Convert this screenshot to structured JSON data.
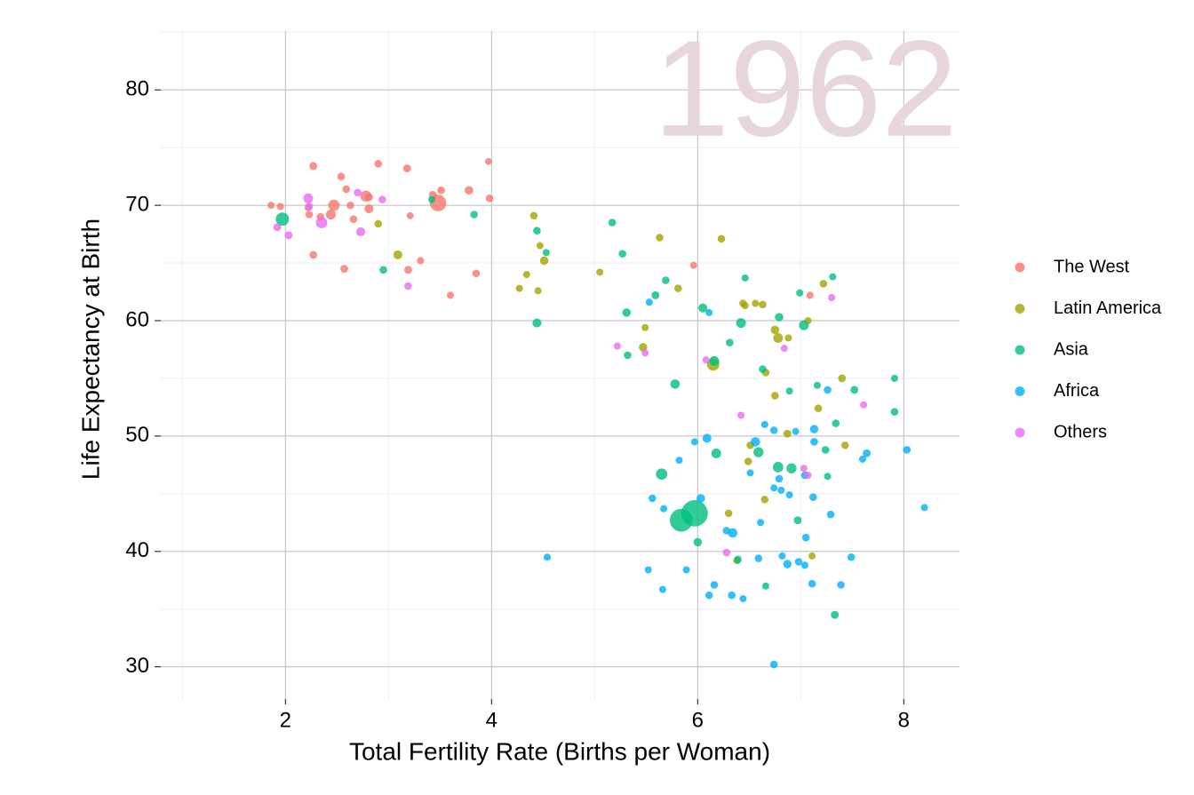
{
  "chart_data": {
    "type": "scatter",
    "annotation": "1962",
    "x_label": "Total Fertility Rate (Births per Woman)",
    "y_label": "Life Expectancy at Birth",
    "xlim": [
      0.79,
      8.54
    ],
    "xticks": [
      2,
      4,
      6,
      8
    ],
    "xminor": [
      1,
      3,
      5,
      7
    ],
    "ylim": [
      27.2,
      85.1
    ],
    "yticks": [
      30,
      40,
      50,
      60,
      70,
      80
    ],
    "yminor": [
      35,
      45,
      55,
      65,
      75,
      85
    ],
    "grid": true,
    "legend": "right",
    "series": [
      {
        "name": "The West",
        "color": "#F8766D",
        "x": [
          1.86,
          1.95,
          2.27,
          2.54,
          2.59,
          2.9,
          3.18,
          3.97,
          2.22,
          2.23,
          2.34,
          2.47,
          2.44,
          2.63,
          2.66,
          2.78,
          2.81,
          2.81,
          3.21,
          3.43,
          3.48,
          3.51,
          3.78,
          3.98,
          2.27,
          2.57,
          3.19,
          3.31,
          3.6,
          3.85,
          5.96,
          7.09
        ],
        "y": [
          70.0,
          69.9,
          73.4,
          72.5,
          71.4,
          73.6,
          73.2,
          73.8,
          69.8,
          69.2,
          69.0,
          70.0,
          69.2,
          70.0,
          68.8,
          70.8,
          69.7,
          70.7,
          69.1,
          70.9,
          70.2,
          71.3,
          71.3,
          70.6,
          65.7,
          64.5,
          64.4,
          65.2,
          62.2,
          64.1,
          64.8,
          62.2
        ],
        "size": [
          5,
          5,
          10,
          8,
          8,
          8,
          10,
          4,
          5,
          8,
          8,
          55,
          30,
          8,
          8,
          50,
          20,
          10,
          4,
          10,
          190,
          8,
          15,
          8,
          8,
          10,
          10,
          5,
          5,
          8,
          5,
          5
        ]
      },
      {
        "name": "Latin America",
        "color": "#A3A500",
        "x": [
          2.9,
          3.09,
          4.41,
          4.27,
          4.34,
          4.45,
          4.47,
          4.51,
          5.05,
          5.63,
          5.81,
          5.49,
          5.47,
          6.23,
          6.44,
          6.46,
          6.56,
          6.63,
          6.75,
          6.78,
          6.88,
          7.07,
          7.22,
          6.15,
          6.66,
          6.75,
          7.17,
          7.4,
          6.87,
          6.51,
          7.43,
          6.49,
          6.65,
          6.3,
          6.38,
          7.11
        ],
        "y": [
          68.4,
          65.7,
          69.1,
          62.8,
          64.0,
          62.6,
          66.5,
          65.2,
          64.2,
          67.2,
          62.8,
          59.4,
          57.7,
          67.1,
          61.5,
          61.3,
          61.5,
          61.4,
          59.2,
          58.5,
          58.5,
          60.0,
          63.2,
          56.2,
          55.5,
          53.5,
          52.4,
          55.0,
          50.2,
          49.2,
          49.2,
          47.8,
          44.5,
          43.3,
          39.2,
          39.6
        ],
        "size": [
          8,
          20,
          8,
          5,
          5,
          5,
          5,
          15,
          5,
          8,
          8,
          5,
          15,
          8,
          8,
          5,
          5,
          8,
          15,
          30,
          5,
          5,
          8,
          75,
          8,
          8,
          8,
          10,
          10,
          8,
          8,
          8,
          8,
          8,
          5,
          5
        ]
      },
      {
        "name": "Asia",
        "color": "#00BF7D",
        "x": [
          1.97,
          2.95,
          3.42,
          3.83,
          4.44,
          4.53,
          4.44,
          5.17,
          5.27,
          5.31,
          5.32,
          5.69,
          5.59,
          5.78,
          6.05,
          6.16,
          6.42,
          6.46,
          6.31,
          6.79,
          6.99,
          7.03,
          7.31,
          6.63,
          6.89,
          7.16,
          7.52,
          7.91,
          7.91,
          7.34,
          7.24,
          7.26,
          6.18,
          6.59,
          6.78,
          6.91,
          5.65,
          5.84,
          5.97,
          6.0,
          6.97,
          6.39,
          6.66,
          7.33
        ],
        "y": [
          68.8,
          64.4,
          70.5,
          69.2,
          67.8,
          65.9,
          59.8,
          68.5,
          65.8,
          60.7,
          57.0,
          63.5,
          62.2,
          54.5,
          61.1,
          56.5,
          59.8,
          63.7,
          58.1,
          60.3,
          62.4,
          59.6,
          63.8,
          55.8,
          53.9,
          54.4,
          54.0,
          55.0,
          52.1,
          51.1,
          48.8,
          46.5,
          48.5,
          48.6,
          47.3,
          47.2,
          46.7,
          42.7,
          43.3,
          40.8,
          42.7,
          39.3,
          37.0,
          34.5
        ],
        "size": [
          95,
          8,
          5,
          8,
          8,
          5,
          20,
          8,
          8,
          15,
          8,
          8,
          10,
          25,
          20,
          30,
          30,
          5,
          8,
          15,
          5,
          30,
          5,
          8,
          5,
          5,
          10,
          5,
          8,
          8,
          8,
          5,
          30,
          35,
          40,
          35,
          55,
          460,
          670,
          15,
          10,
          8,
          5,
          10
        ]
      },
      {
        "name": "Africa",
        "color": "#00B0F6",
        "x": [
          4.54,
          5.53,
          6.11,
          5.56,
          5.67,
          5.82,
          5.97,
          6.09,
          6.03,
          6.28,
          6.34,
          5.52,
          5.66,
          5.89,
          6.16,
          6.11,
          6.33,
          6.44,
          6.59,
          6.61,
          6.51,
          6.56,
          6.65,
          6.74,
          6.95,
          6.74,
          6.81,
          6.79,
          6.89,
          6.82,
          6.87,
          6.98,
          7.04,
          7.05,
          7.04,
          7.12,
          7.13,
          7.13,
          7.26,
          7.29,
          7.11,
          7.39,
          7.49,
          7.6,
          7.64,
          8.03,
          8.2,
          6.74
        ],
        "y": [
          39.5,
          61.6,
          60.7,
          44.6,
          43.7,
          47.9,
          49.5,
          49.8,
          44.6,
          41.8,
          41.6,
          38.4,
          36.7,
          38.4,
          37.1,
          36.2,
          36.2,
          35.9,
          39.4,
          42.5,
          46.8,
          49.5,
          51.0,
          50.5,
          50.4,
          45.5,
          45.3,
          46.3,
          44.9,
          39.6,
          38.9,
          39.1,
          38.8,
          41.2,
          46.6,
          44.7,
          50.6,
          49.5,
          54.0,
          43.2,
          37.2,
          37.1,
          39.5,
          48.0,
          48.5,
          48.8,
          43.8,
          30.2
        ],
        "size": [
          5,
          5,
          5,
          8,
          5,
          5,
          5,
          20,
          15,
          8,
          25,
          5,
          5,
          5,
          8,
          8,
          8,
          5,
          8,
          5,
          5,
          25,
          5,
          8,
          5,
          5,
          5,
          8,
          5,
          5,
          15,
          8,
          5,
          8,
          8,
          8,
          15,
          8,
          8,
          8,
          8,
          8,
          8,
          5,
          10,
          8,
          5,
          8
        ]
      },
      {
        "name": "Others",
        "color": "#E76BF3",
        "x": [
          2.22,
          2.23,
          1.92,
          2.03,
          2.35,
          2.7,
          2.73,
          2.94,
          3.19,
          5.22,
          5.49,
          6.08,
          7.3,
          6.84,
          6.42,
          7.61,
          7.03,
          7.07,
          6.28
        ],
        "y": [
          70.6,
          69.9,
          68.1,
          67.4,
          68.5,
          71.1,
          67.7,
          70.5,
          63.0,
          57.8,
          57.2,
          56.6,
          62.0,
          57.6,
          51.8,
          52.7,
          47.2,
          46.6,
          39.9
        ],
        "size": [
          30,
          8,
          10,
          10,
          55,
          8,
          20,
          8,
          8,
          5,
          5,
          5,
          5,
          5,
          5,
          5,
          5,
          5,
          8
        ]
      }
    ]
  }
}
